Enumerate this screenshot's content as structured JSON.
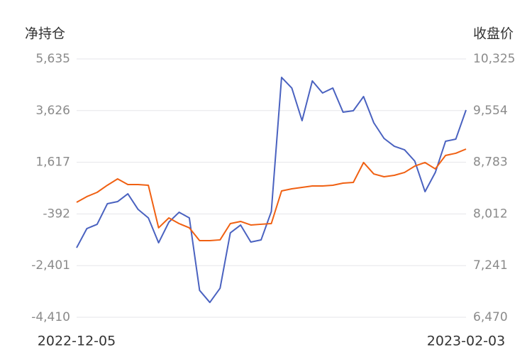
{
  "chart_data": {
    "type": "line",
    "y_title": "净持仓",
    "y2_title": "收盘价",
    "categories": [
      "2022-12-05",
      null,
      null,
      null,
      null,
      null,
      null,
      null,
      null,
      null,
      null,
      null,
      null,
      null,
      null,
      null,
      null,
      null,
      null,
      null,
      null,
      null,
      null,
      null,
      null,
      null,
      null,
      null,
      null,
      null,
      null,
      null,
      null,
      null,
      null,
      null,
      null,
      null,
      "2023-02-03"
    ],
    "series": [
      {
        "color": "#4a62c0",
        "axis": "y",
        "values": [
          -1707,
          -961,
          -796,
          5,
          87,
          391,
          -216,
          -547,
          -1513,
          -713,
          -327,
          -547,
          -3363,
          -3832,
          -3280,
          -1127,
          -823,
          -1486,
          -1403,
          -299,
          4917,
          4503,
          3234,
          4779,
          4310,
          4503,
          3565,
          3620,
          4172,
          3151,
          2544,
          2240,
          2102,
          1661,
          474,
          1219,
          2433,
          2516,
          3648
        ]
      },
      {
        "color": "#f06012",
        "axis": "y2",
        "values": [
          8186,
          8271,
          8334,
          8440,
          8535,
          8451,
          8451,
          8440,
          7805,
          7953,
          7868,
          7805,
          7614,
          7614,
          7625,
          7868,
          7900,
          7847,
          7858,
          7868,
          8355,
          8387,
          8408,
          8429,
          8429,
          8440,
          8472,
          8482,
          8779,
          8609,
          8567,
          8588,
          8631,
          8726,
          8779,
          8684,
          8885,
          8917,
          8980
        ]
      }
    ],
    "ylim": [
      -4410,
      5635
    ],
    "yticks": [
      {
        "value": -4410,
        "label": "-4,410"
      },
      {
        "value": -2401,
        "label": "-2,401"
      },
      -392,
      {
        "value": 1617,
        "label": "1,617"
      },
      {
        "value": 3626,
        "label": "3,626"
      },
      {
        "value": 5635,
        "label": "5,635"
      }
    ],
    "y2lim": [
      6470,
      10325
    ],
    "y2ticks": [
      {
        "value": 6470,
        "label": "6,470"
      },
      {
        "value": 7241,
        "label": "7,241"
      },
      {
        "value": 8012,
        "label": "8,012"
      },
      {
        "value": 8783,
        "label": "8,783"
      },
      {
        "value": 9554,
        "label": "9,554"
      },
      {
        "value": 10325,
        "label": "10,325"
      }
    ],
    "grid": true
  }
}
